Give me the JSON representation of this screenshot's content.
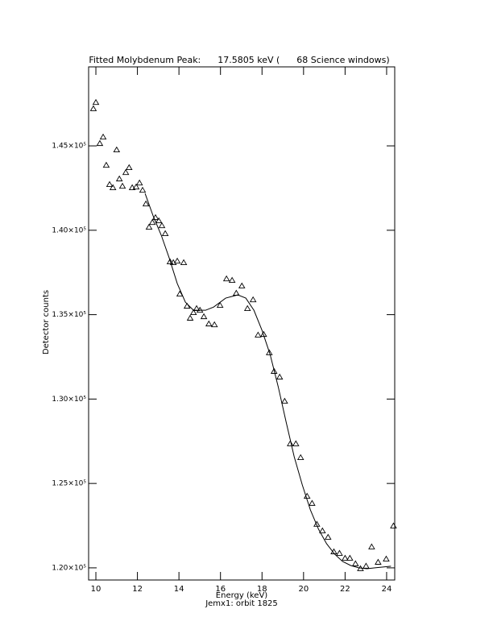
{
  "chart_data": {
    "type": "scatter",
    "title": "Fitted Molybdenum Peak:      17.5805 keV (      68 Science windows)",
    "x_label": "Energy (keV)",
    "y_label": "Detector counts",
    "footnote": "Jemx1: orbit 1825",
    "xlim": [
      9.65,
      24.39
    ],
    "ylim": [
      119280,
      149680
    ],
    "xticks": [
      10,
      12,
      14,
      16,
      18,
      20,
      22,
      24
    ],
    "yticks": [
      {
        "value": 120000,
        "label": "1.20×10⁵"
      },
      {
        "value": 125000,
        "label": "1.25×10⁵"
      },
      {
        "value": 130000,
        "label": "1.30×10⁵"
      },
      {
        "value": 135000,
        "label": "1.35×10⁵"
      },
      {
        "value": 140000,
        "label": "1.40×10⁵"
      },
      {
        "value": 145000,
        "label": "1.45×10⁵"
      }
    ],
    "color": "#000000",
    "series": [
      {
        "type": "scatter",
        "x": [
          9.88,
          10.0,
          10.19,
          10.35,
          10.5,
          10.66,
          10.82,
          11.0,
          11.13,
          11.28,
          11.44,
          11.6,
          11.75,
          11.94,
          12.1,
          12.25,
          12.41,
          12.56,
          12.72,
          12.87,
          13.03,
          13.18,
          13.34,
          13.57,
          13.73,
          13.92,
          14.04,
          14.23,
          14.39,
          14.54,
          14.7,
          14.85,
          15.01,
          15.2,
          15.44,
          15.71,
          15.98,
          16.29,
          16.56,
          16.76,
          17.03,
          17.3,
          17.57,
          17.81,
          18.08,
          18.35,
          18.58,
          18.85,
          19.09,
          19.36,
          19.63,
          19.86,
          20.17,
          20.41,
          20.64,
          20.91,
          21.18,
          21.46,
          21.73,
          22.0,
          22.23,
          22.5,
          22.74,
          23.01,
          23.28,
          23.59,
          23.98,
          24.33
        ],
        "values": [
          147200,
          147570,
          145140,
          145520,
          143850,
          142710,
          142520,
          144760,
          143040,
          142610,
          143420,
          143710,
          142520,
          142560,
          142800,
          142370,
          141560,
          140180,
          140460,
          140750,
          140560,
          140270,
          139800,
          138130,
          138080,
          138170,
          136220,
          138080,
          135500,
          134790,
          135120,
          135360,
          135260,
          134880,
          134450,
          134400,
          135550,
          137120,
          137030,
          136270,
          136700,
          135360,
          135880,
          133790,
          133830,
          132740,
          131640,
          131300,
          129870,
          127350,
          127350,
          126530,
          124240,
          123820,
          122580,
          122190,
          121810,
          120950,
          120860,
          120570,
          120570,
          120240,
          119950,
          120100,
          121240,
          120330,
          120520,
          122480
        ]
      },
      {
        "type": "line",
        "x": [
          12.37,
          12.76,
          13.15,
          13.53,
          13.92,
          14.31,
          14.7,
          15.28,
          15.67,
          16.25,
          16.83,
          17.22,
          17.61,
          18.0,
          18.39,
          18.78,
          19.17,
          19.55,
          19.94,
          20.33,
          20.72,
          21.11,
          21.5,
          21.88,
          22.27,
          22.66,
          23.05,
          23.44,
          23.83,
          24.21
        ],
        "values": [
          142180,
          140840,
          139700,
          138360,
          136840,
          135740,
          135260,
          135260,
          135450,
          135980,
          136170,
          135980,
          135260,
          134070,
          132640,
          130730,
          128590,
          126580,
          124910,
          123430,
          122290,
          121430,
          120810,
          120380,
          120140,
          120000,
          119950,
          120000,
          120050,
          120100
        ]
      }
    ]
  }
}
